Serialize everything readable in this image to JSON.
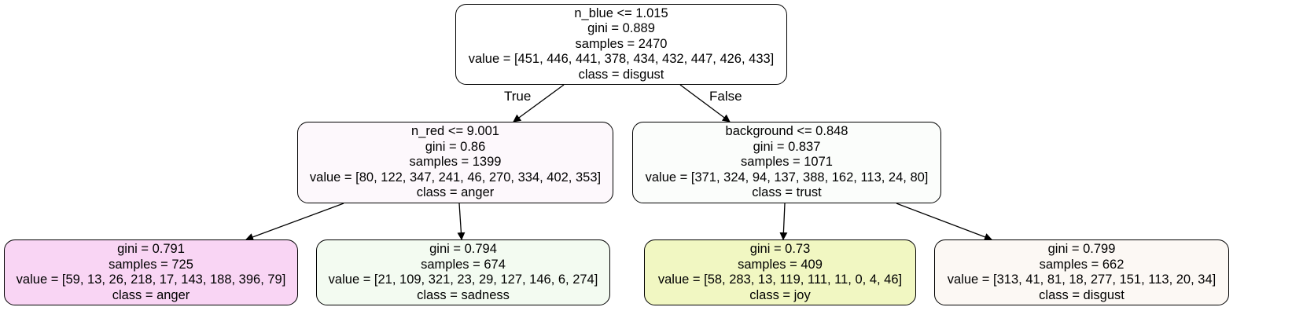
{
  "tree": {
    "nodes": [
      {
        "id": "root",
        "lines": [
          "n_blue <= 1.015",
          "gini = 0.889",
          "samples = 2470",
          "value = [451, 446, 441, 378, 434, 432, 447, 426, 433]",
          "class = disgust"
        ],
        "fill": "#ffffff"
      },
      {
        "id": "left",
        "lines": [
          "n_red <= 9.001",
          "gini = 0.86",
          "samples = 1399",
          "value = [80, 122, 347, 241, 46, 270, 334, 402, 353]",
          "class = anger"
        ],
        "fill": "#fdf8fc"
      },
      {
        "id": "right",
        "lines": [
          "background <= 0.848",
          "gini = 0.837",
          "samples = 1071",
          "value = [371, 324, 94, 137, 388, 162, 113, 24, 80]",
          "class = trust"
        ],
        "fill": "#fbfdfb"
      },
      {
        "id": "leaf1",
        "lines": [
          "gini = 0.791",
          "samples = 725",
          "value = [59, 13, 26, 218, 17, 143, 188, 396, 79]",
          "class = anger"
        ],
        "fill": "#f9d5f4"
      },
      {
        "id": "leaf2",
        "lines": [
          "gini = 0.794",
          "samples = 674",
          "value = [21, 109, 321, 23, 29, 127, 146, 6, 274]",
          "class = sadness"
        ],
        "fill": "#f3fbf1"
      },
      {
        "id": "leaf3",
        "lines": [
          "gini = 0.73",
          "samples = 409",
          "value = [58, 283, 13, 119, 111, 11, 0, 4, 46]",
          "class = joy"
        ],
        "fill": "#f1f7c2"
      },
      {
        "id": "leaf4",
        "lines": [
          "gini = 0.799",
          "samples = 662",
          "value = [313, 41, 81, 18, 277, 151, 113, 20, 34]",
          "class = disgust"
        ],
        "fill": "#fcf8f4"
      }
    ],
    "edges": [
      {
        "from": "root",
        "to": "left",
        "label": "True"
      },
      {
        "from": "root",
        "to": "right",
        "label": "False"
      },
      {
        "from": "left",
        "to": "leaf1",
        "label": ""
      },
      {
        "from": "left",
        "to": "leaf2",
        "label": ""
      },
      {
        "from": "right",
        "to": "leaf3",
        "label": ""
      },
      {
        "from": "right",
        "to": "leaf4",
        "label": ""
      }
    ]
  }
}
